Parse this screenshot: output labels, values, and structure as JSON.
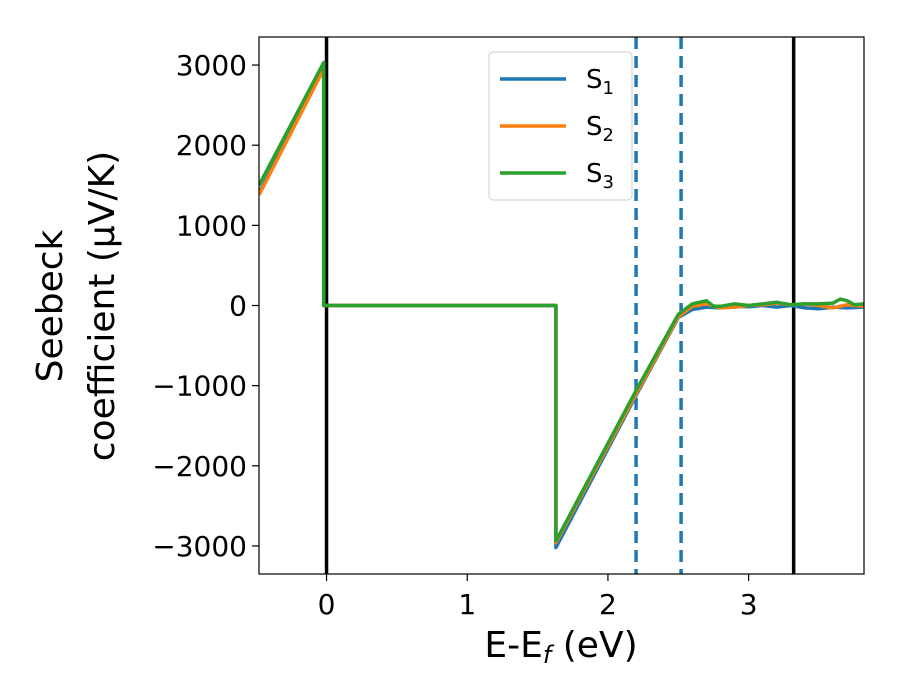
{
  "chart_data": {
    "type": "line",
    "xlabel": "E-E",
    "xlabel_sub": "f",
    "xlabel_unit": " (eV)",
    "ylabel_line1": "Seebeck",
    "ylabel_line2": "coefficient  (μV/K)",
    "xlim": [
      -0.48,
      3.82
    ],
    "ylim": [
      -3350,
      3350
    ],
    "x_ticks": [
      0,
      1,
      2,
      3
    ],
    "x_tick_labels": [
      "0",
      "1",
      "2",
      "3"
    ],
    "y_ticks": [
      -3000,
      -2000,
      -1000,
      0,
      1000,
      2000,
      3000
    ],
    "y_tick_labels": [
      "−3000",
      "−2000",
      "−1000",
      "0",
      "1000",
      "2000",
      "3000"
    ],
    "grid": false,
    "legend_position": "top-center",
    "vlines": [
      {
        "x": 0.0,
        "style": "solid",
        "color": "#000000"
      },
      {
        "x": 3.32,
        "style": "solid",
        "color": "#000000"
      },
      {
        "x": 2.2,
        "style": "dashed",
        "color": "#1f77b4"
      },
      {
        "x": 2.52,
        "style": "dashed",
        "color": "#1f77b4"
      }
    ],
    "series": [
      {
        "name": "S",
        "sub": "1",
        "color": "#1f77b4",
        "points": [
          [
            -0.48,
            1400
          ],
          [
            -0.02,
            2980
          ],
          [
            -0.02,
            0
          ],
          [
            1.63,
            0
          ],
          [
            1.63,
            -3020
          ],
          [
            2.2,
            -1120
          ],
          [
            2.5,
            -150
          ],
          [
            2.6,
            -50
          ],
          [
            2.7,
            -20
          ],
          [
            2.8,
            -30
          ],
          [
            2.9,
            -10
          ],
          [
            3.0,
            -15
          ],
          [
            3.1,
            0
          ],
          [
            3.2,
            -20
          ],
          [
            3.3,
            0
          ],
          [
            3.4,
            -30
          ],
          [
            3.5,
            -40
          ],
          [
            3.6,
            -20
          ],
          [
            3.7,
            -30
          ],
          [
            3.82,
            -20
          ]
        ]
      },
      {
        "name": "S",
        "sub": "2",
        "color": "#ff7f0e",
        "points": [
          [
            -0.48,
            1380
          ],
          [
            -0.02,
            2950
          ],
          [
            -0.02,
            0
          ],
          [
            1.63,
            0
          ],
          [
            1.63,
            -2960
          ],
          [
            2.2,
            -1100
          ],
          [
            2.5,
            -140
          ],
          [
            2.6,
            -10
          ],
          [
            2.7,
            20
          ],
          [
            2.8,
            -30
          ],
          [
            2.9,
            -20
          ],
          [
            3.0,
            0
          ],
          [
            3.1,
            10
          ],
          [
            3.2,
            30
          ],
          [
            3.3,
            10
          ],
          [
            3.4,
            20
          ],
          [
            3.5,
            0
          ],
          [
            3.6,
            -30
          ],
          [
            3.7,
            10
          ],
          [
            3.82,
            -10
          ]
        ]
      },
      {
        "name": "S",
        "sub": "3",
        "color": "#2ca02c",
        "points": [
          [
            -0.48,
            1500
          ],
          [
            -0.02,
            3030
          ],
          [
            -0.02,
            0
          ],
          [
            1.63,
            0
          ],
          [
            1.63,
            -2940
          ],
          [
            2.2,
            -1060
          ],
          [
            2.5,
            -110
          ],
          [
            2.6,
            20
          ],
          [
            2.7,
            60
          ],
          [
            2.75,
            -10
          ],
          [
            2.8,
            -10
          ],
          [
            2.9,
            20
          ],
          [
            3.0,
            0
          ],
          [
            3.1,
            20
          ],
          [
            3.2,
            40
          ],
          [
            3.3,
            10
          ],
          [
            3.4,
            20
          ],
          [
            3.5,
            20
          ],
          [
            3.6,
            30
          ],
          [
            3.65,
            80
          ],
          [
            3.7,
            60
          ],
          [
            3.75,
            10
          ],
          [
            3.82,
            20
          ]
        ]
      }
    ]
  }
}
